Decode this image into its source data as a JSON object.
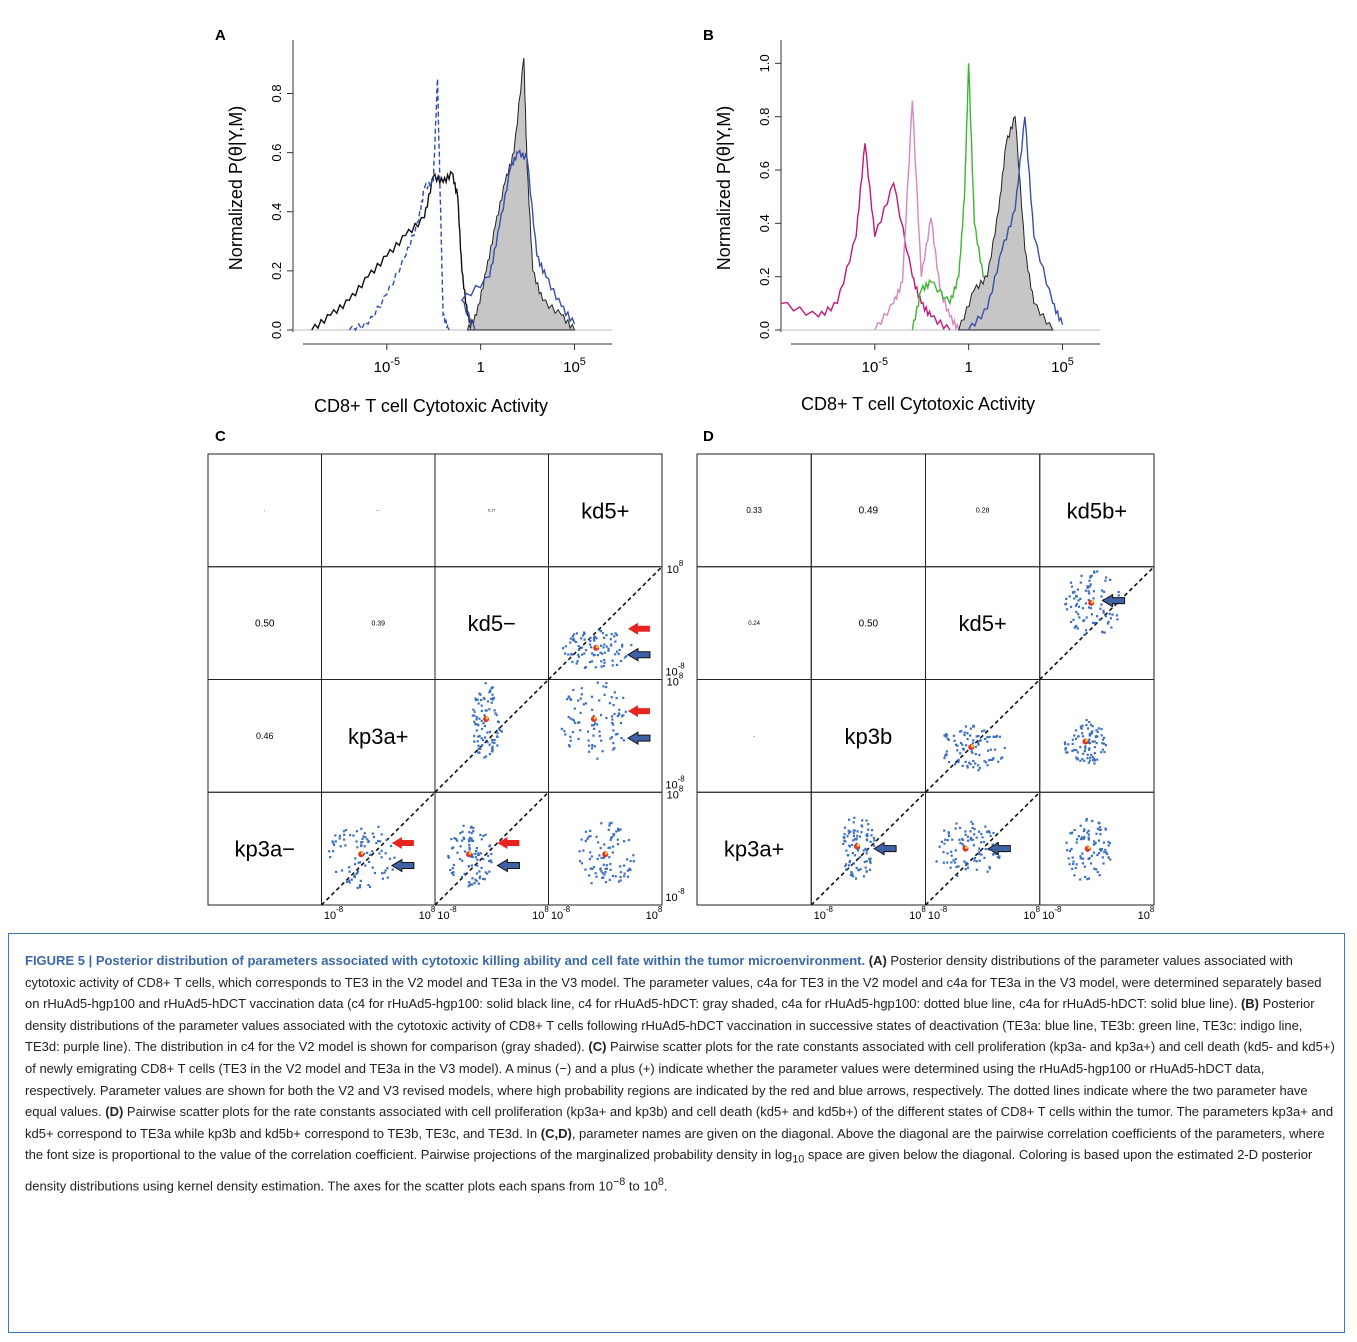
{
  "panels": {
    "A": {
      "letter": "A"
    },
    "B": {
      "letter": "B"
    },
    "C": {
      "letter": "C"
    },
    "D": {
      "letter": "D"
    }
  },
  "histograms": {
    "ylabel": "Normalized P(θ|Y,M)",
    "xlabel": "CD8+ T cell Cytotoxic Activity",
    "x_ticks": [
      {
        "base": "10",
        "exp": "-5"
      },
      {
        "base": "1",
        "exp": ""
      },
      {
        "base": "10",
        "exp": "5"
      }
    ],
    "A_y_ticks": [
      "0.0",
      "0.2",
      "0.4",
      "0.6",
      "0.8"
    ],
    "B_y_ticks": [
      "0.0",
      "0.2",
      "0.4",
      "0.6",
      "0.8",
      "1.0"
    ]
  },
  "chart_data": [
    {
      "panel": "A",
      "type": "line",
      "xscale": "log10",
      "xlim": [
        1e-10,
        10000000.0
      ],
      "ylim": [
        0,
        0.92
      ],
      "series": [
        {
          "style": "solid",
          "color": "#111111",
          "points": [
            [
              1e-09,
              0.0
            ],
            [
              1e-08,
              0.05
            ],
            [
              1e-07,
              0.1
            ],
            [
              1e-06,
              0.18
            ],
            [
              1e-05,
              0.25
            ],
            [
              0.0001,
              0.32
            ],
            [
              0.001,
              0.38
            ],
            [
              0.003,
              0.52
            ],
            [
              0.01,
              0.5
            ],
            [
              0.03,
              0.53
            ],
            [
              0.06,
              0.45
            ],
            [
              0.1,
              0.2
            ],
            [
              0.2,
              0.05
            ],
            [
              0.4,
              0.0
            ]
          ]
        },
        {
          "style": "dotted",
          "color": "#2f4fa8",
          "points": [
            [
              1e-07,
              0.0
            ],
            [
              1e-06,
              0.02
            ],
            [
              1e-05,
              0.12
            ],
            [
              0.0001,
              0.25
            ],
            [
              0.0005,
              0.37
            ],
            [
              0.001,
              0.48
            ],
            [
              0.003,
              0.5
            ],
            [
              0.005,
              0.85
            ],
            [
              0.008,
              0.3
            ],
            [
              0.01,
              0.05
            ],
            [
              0.02,
              0.0
            ]
          ]
        },
        {
          "style": "filled",
          "color": "#c6c6c6",
          "points": [
            [
              0.2,
              0.0
            ],
            [
              0.6,
              0.05
            ],
            [
              2,
              0.2
            ],
            [
              6,
              0.35
            ],
            [
              20,
              0.5
            ],
            [
              60,
              0.6
            ],
            [
              200,
              0.92
            ],
            [
              300,
              0.55
            ],
            [
              600,
              0.2
            ],
            [
              2000,
              0.1
            ],
            [
              20000,
              0.05
            ],
            [
              100000.0,
              0.0
            ]
          ]
        },
        {
          "style": "solid",
          "color": "#3c4fa8",
          "points": [
            [
              0.5,
              0.0
            ],
            [
              0.1,
              0.1
            ],
            [
              3,
              0.18
            ],
            [
              10,
              0.35
            ],
            [
              40,
              0.55
            ],
            [
              100,
              0.6
            ],
            [
              300,
              0.58
            ],
            [
              1000,
              0.25
            ],
            [
              3000,
              0.18
            ],
            [
              20000,
              0.08
            ],
            [
              100000.0,
              0.02
            ]
          ]
        }
      ]
    },
    {
      "panel": "B",
      "type": "line",
      "xscale": "log10",
      "xlim": [
        1e-10,
        10000000.0
      ],
      "ylim": [
        0,
        1.02
      ],
      "series": [
        {
          "style": "solid",
          "color": "#c2187a",
          "points": [
            [
              1e-10,
              0.1
            ],
            [
              1e-08,
              0.05
            ],
            [
              1e-07,
              0.1
            ],
            [
              1e-06,
              0.35
            ],
            [
              3e-06,
              0.7
            ],
            [
              1e-05,
              0.35
            ],
            [
              0.0001,
              0.55
            ],
            [
              0.001,
              0.2
            ],
            [
              0.003,
              0.1
            ],
            [
              0.01,
              0.05
            ],
            [
              0.1,
              0.0
            ]
          ]
        },
        {
          "style": "solid",
          "color": "#d586c3",
          "points": [
            [
              1e-05,
              0.0
            ],
            [
              0.0001,
              0.1
            ],
            [
              0.0003,
              0.18
            ],
            [
              0.001,
              0.86
            ],
            [
              0.003,
              0.2
            ],
            [
              0.01,
              0.42
            ],
            [
              0.03,
              0.15
            ],
            [
              0.1,
              0.05
            ],
            [
              0.3,
              0.0
            ]
          ]
        },
        {
          "style": "solid",
          "color": "#3cb631",
          "points": [
            [
              0.001,
              0.0
            ],
            [
              0.003,
              0.15
            ],
            [
              0.01,
              0.18
            ],
            [
              0.1,
              0.1
            ],
            [
              0.3,
              0.2
            ],
            [
              0.6,
              0.5
            ],
            [
              1,
              1.0
            ],
            [
              2,
              0.4
            ],
            [
              6,
              0.2
            ],
            [
              20,
              0.1
            ],
            [
              60,
              0.0
            ]
          ]
        },
        {
          "style": "filled",
          "color": "#c6c6c6",
          "points": [
            [
              0.3,
              0.0
            ],
            [
              2,
              0.15
            ],
            [
              10,
              0.2
            ],
            [
              40,
              0.45
            ],
            [
              100,
              0.7
            ],
            [
              300,
              0.8
            ],
            [
              1000,
              0.3
            ],
            [
              3000,
              0.1
            ],
            [
              30000.0,
              0.0
            ]
          ]
        },
        {
          "style": "solid",
          "color": "#3c4fa8",
          "points": [
            [
              1,
              0.0
            ],
            [
              10,
              0.08
            ],
            [
              60,
              0.3
            ],
            [
              300,
              0.45
            ],
            [
              1000,
              0.8
            ],
            [
              3000,
              0.35
            ],
            [
              30000.0,
              0.1
            ],
            [
              100000.0,
              0.02
            ]
          ]
        }
      ]
    }
  ],
  "grid_C": {
    "diag": [
      "kp3a−",
      "kp3a+",
      "kd5−",
      "kd5+"
    ],
    "coef": [
      {
        "row": 0,
        "col": 0,
        "text": "·",
        "size": 6
      },
      {
        "row": 0,
        "col": 1,
        "text": "···",
        "size": 5
      },
      {
        "row": 0,
        "col": 2,
        "text": "0.17",
        "size": 4
      },
      {
        "row": 1,
        "col": 0,
        "text": "0.50",
        "size": 10
      },
      {
        "row": 1,
        "col": 1,
        "text": "0.39",
        "size": 7
      },
      {
        "row": 2,
        "col": 0,
        "text": "0.46",
        "size": 9
      }
    ],
    "x_min": "10",
    "x_min_exp": "-8",
    "x_max": "10",
    "x_max_exp": "8"
  },
  "grid_D": {
    "diag": [
      "kp3a+",
      "kp3b",
      "kd5+",
      "kd5b+"
    ],
    "coef": [
      {
        "row": 0,
        "col": 0,
        "text": "0.33",
        "size": 8
      },
      {
        "row": 0,
        "col": 1,
        "text": "0.49",
        "size": 10
      },
      {
        "row": 0,
        "col": 2,
        "text": "0.28",
        "size": 7
      },
      {
        "row": 1,
        "col": 0,
        "text": "0.24",
        "size": 6
      },
      {
        "row": 1,
        "col": 1,
        "text": "0.50",
        "size": 10
      },
      {
        "row": 2,
        "col": 0,
        "text": "-",
        "size": 5
      }
    ],
    "y_top": "10",
    "y_top_exp": "8",
    "y_bot": "10",
    "y_bot_exp": "-8",
    "x_min": "10",
    "x_min_exp": "-8",
    "x_max": "10",
    "x_max_exp": "8"
  },
  "caption": {
    "title": "FIGURE 5 | Posterior distribution of parameters associated with cytotoxic killing ability and cell fate within the tumor microenvironment.",
    "a_tag": "(A)",
    "a_text": " Posterior density distributions of the parameter values associated with cytotoxic activity of CD8+ T cells, which corresponds to TE3 in the V2 model and TE3a in the V3 model. The parameter values, c4a for TE3 in the V2 model and c4a for TE3a in the V3 model, were determined separately based on rHuAd5-hgp100 and rHuAd5-hDCT vaccination data (c4 for rHuAd5-hgp100: solid black line, c4 for rHuAd5-hDCT: gray shaded, c4a for rHuAd5-hgp100: dotted blue line, c4a for rHuAd5-hDCT: solid blue line). ",
    "b_tag": "(B)",
    "b_text": " Posterior density distributions of the parameter values associated with the cytotoxic activity of CD8+ T cells following rHuAd5-hDCT vaccination in successive states of deactivation (TE3a: blue line, TE3b: green line, TE3c: indigo line, TE3d: purple line). The distribution in c4 for the V2 model is shown for comparison (gray shaded). ",
    "c_tag": "(C)",
    "c_text": " Pairwise scatter plots for the rate constants associated with cell proliferation (kp3a- and kp3a+) and cell death (kd5- and kd5+) of newly emigrating CD8+ T cells (TE3 in the V2 model and TE3a in the V3 model). A minus (−) and a plus (+) indicate whether the parameter values were determined using the rHuAd5-hgp100 or rHuAd5-hDCT data, respectively. Parameter values are shown for both the V2 and V3 revised models, where high probability regions are indicated by the red and blue arrows, respectively. The dotted lines indicate where the two parameter have equal values. ",
    "d_tag": "(D)",
    "d_text": " Pairwise scatter plots for the rate constants associated with cell proliferation (kp3a+ and kp3b) and cell death (kd5+ and kd5b+) of the different states of CD8+ T cells within the tumor. The parameters kp3a+ and kd5+ correspond to TE3a while kp3b and kd5b+ correspond to TE3b, TE3c, and TE3d. In ",
    "cd_tag": "(C,D)",
    "cd_text": ", parameter names are given on the diagonal. Above the diagonal are the pairwise correlation coefficients of the parameters, where the font size is proportional to the value of the correlation coefficient. Pairwise projections of the marginalized probability density in log",
    "sub10": "10",
    "cd_text2": " space are given below the diagonal. Coloring is based upon the estimated 2-D posterior density distributions using kernel density estimation. The axes for the scatter plots each spans from 10",
    "sup_neg8": "−8",
    "cd_text3": " to 10",
    "sup_8": "8",
    "cd_end": "."
  }
}
